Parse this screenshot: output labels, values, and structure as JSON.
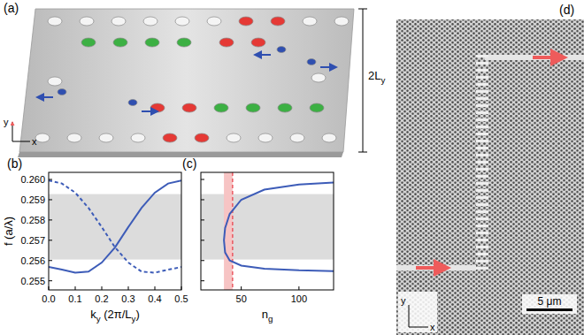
{
  "figure": {
    "a": {
      "label": "(a)",
      "width_label": {
        "parts": [
          {
            "text": "2L"
          },
          {
            "text": "y",
            "sub": true
          }
        ]
      },
      "axes": [
        "x",
        "y"
      ]
    },
    "d": {
      "label": "(d)",
      "scale_bar": "5 μm",
      "axes": [
        "x",
        "y"
      ]
    }
  },
  "chart_data": [
    {
      "type": "line",
      "panel_label": "(b)",
      "xlabel": {
        "parts": [
          {
            "text": "k"
          },
          {
            "text": "y",
            "sub": true
          },
          {
            "text": " (2π/L"
          },
          {
            "text": "y",
            "sub": true
          },
          {
            "text": ")"
          }
        ]
      },
      "ylabel": "f (a/λ)",
      "xlim": [
        0,
        0.5
      ],
      "ylim": [
        0.25455,
        0.26035
      ],
      "xticks": [
        {
          "value": 0,
          "label": "0.0"
        },
        0.1,
        0.2,
        0.3,
        0.4,
        0.5
      ],
      "yticks": [
        0.255,
        0.256,
        0.257,
        0.258,
        0.259,
        {
          "value": 0.26,
          "label": "0.260"
        }
      ],
      "bands": [
        {
          "axis": "y",
          "from": 0.25605,
          "to": 0.25928,
          "color": "#dcdcdc"
        }
      ],
      "series": [
        {
          "color": "#3d5cb8",
          "line_style": "solid",
          "x": [
            0,
            0.05,
            0.1,
            0.15,
            0.2,
            0.25,
            0.3,
            0.35,
            0.4,
            0.45,
            0.5
          ],
          "values": [
            0.25568,
            0.25555,
            0.2554,
            0.25545,
            0.2559,
            0.25665,
            0.25765,
            0.2586,
            0.25935,
            0.2598,
            0.25995
          ]
        },
        {
          "color": "#3d5cb8",
          "line_style": "dashed",
          "x": [
            0,
            0.05,
            0.1,
            0.15,
            0.2,
            0.25,
            0.3,
            0.35,
            0.4,
            0.45,
            0.5
          ],
          "values": [
            0.25995,
            0.2598,
            0.25935,
            0.2586,
            0.25765,
            0.25665,
            0.2559,
            0.25545,
            0.2554,
            0.25555,
            0.25568
          ]
        }
      ]
    },
    {
      "type": "line",
      "panel_label": "(c)",
      "xlabel": {
        "parts": [
          {
            "text": "n"
          },
          {
            "text": "g",
            "sub": true
          }
        ]
      },
      "xlim": [
        15,
        130
      ],
      "ylim": [
        0.25455,
        0.26035
      ],
      "xticks": [
        50,
        100
      ],
      "yticks": [
        0.255,
        0.256,
        0.257,
        0.258,
        0.259,
        0.26
      ],
      "tick_labels": "x",
      "bands": [
        {
          "axis": "y",
          "from": 0.25605,
          "to": 0.25928,
          "color": "#dcdcdc"
        },
        {
          "axis": "x",
          "from": 35,
          "to": 42.5,
          "color": "#f7c4c4"
        }
      ],
      "reference_lines": [
        {
          "axis": "x",
          "value": 42.5,
          "color": "#e8454f",
          "line_style": "dashed"
        }
      ],
      "series": [
        {
          "color": "#3d5cb8",
          "line_style": "solid",
          "x": [
            130,
            100,
            70,
            50,
            40,
            36,
            35,
            36,
            40,
            50,
            70,
            100,
            130
          ],
          "values": [
            0.25548,
            0.25552,
            0.2556,
            0.25575,
            0.256,
            0.2564,
            0.257,
            0.2576,
            0.2583,
            0.259,
            0.2595,
            0.25975,
            0.25985
          ]
        }
      ]
    }
  ]
}
